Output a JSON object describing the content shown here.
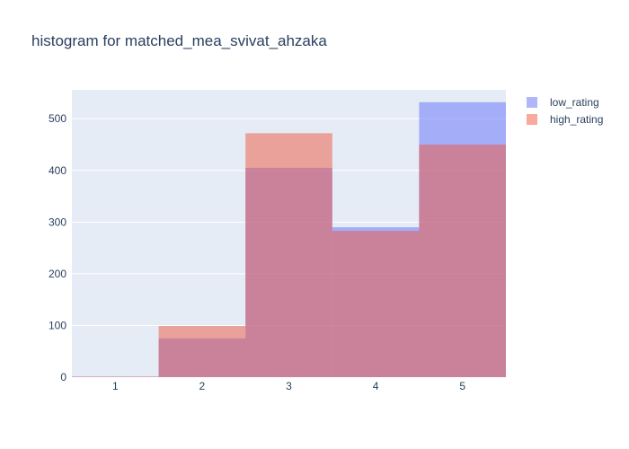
{
  "chart_data": {
    "type": "bar",
    "barmode": "overlay",
    "title": "histogram for matched_mea_svivat_ahzaka",
    "xlabel": "",
    "ylabel": "",
    "categories": [
      "1",
      "2",
      "3",
      "4",
      "5"
    ],
    "series": [
      {
        "name": "low_rating",
        "values": [
          1,
          75,
          405,
          290,
          532
        ],
        "color": "#636efa"
      },
      {
        "name": "high_rating",
        "values": [
          1,
          99,
          472,
          283,
          450
        ],
        "color": "#ef553b"
      }
    ],
    "ylim": [
      0,
      556
    ],
    "y_ticks": [
      0,
      100,
      200,
      300,
      400,
      500
    ],
    "grid": true,
    "legend_position": "top-right",
    "plot_background": "#e5ecf6",
    "opacity": 0.5
  }
}
